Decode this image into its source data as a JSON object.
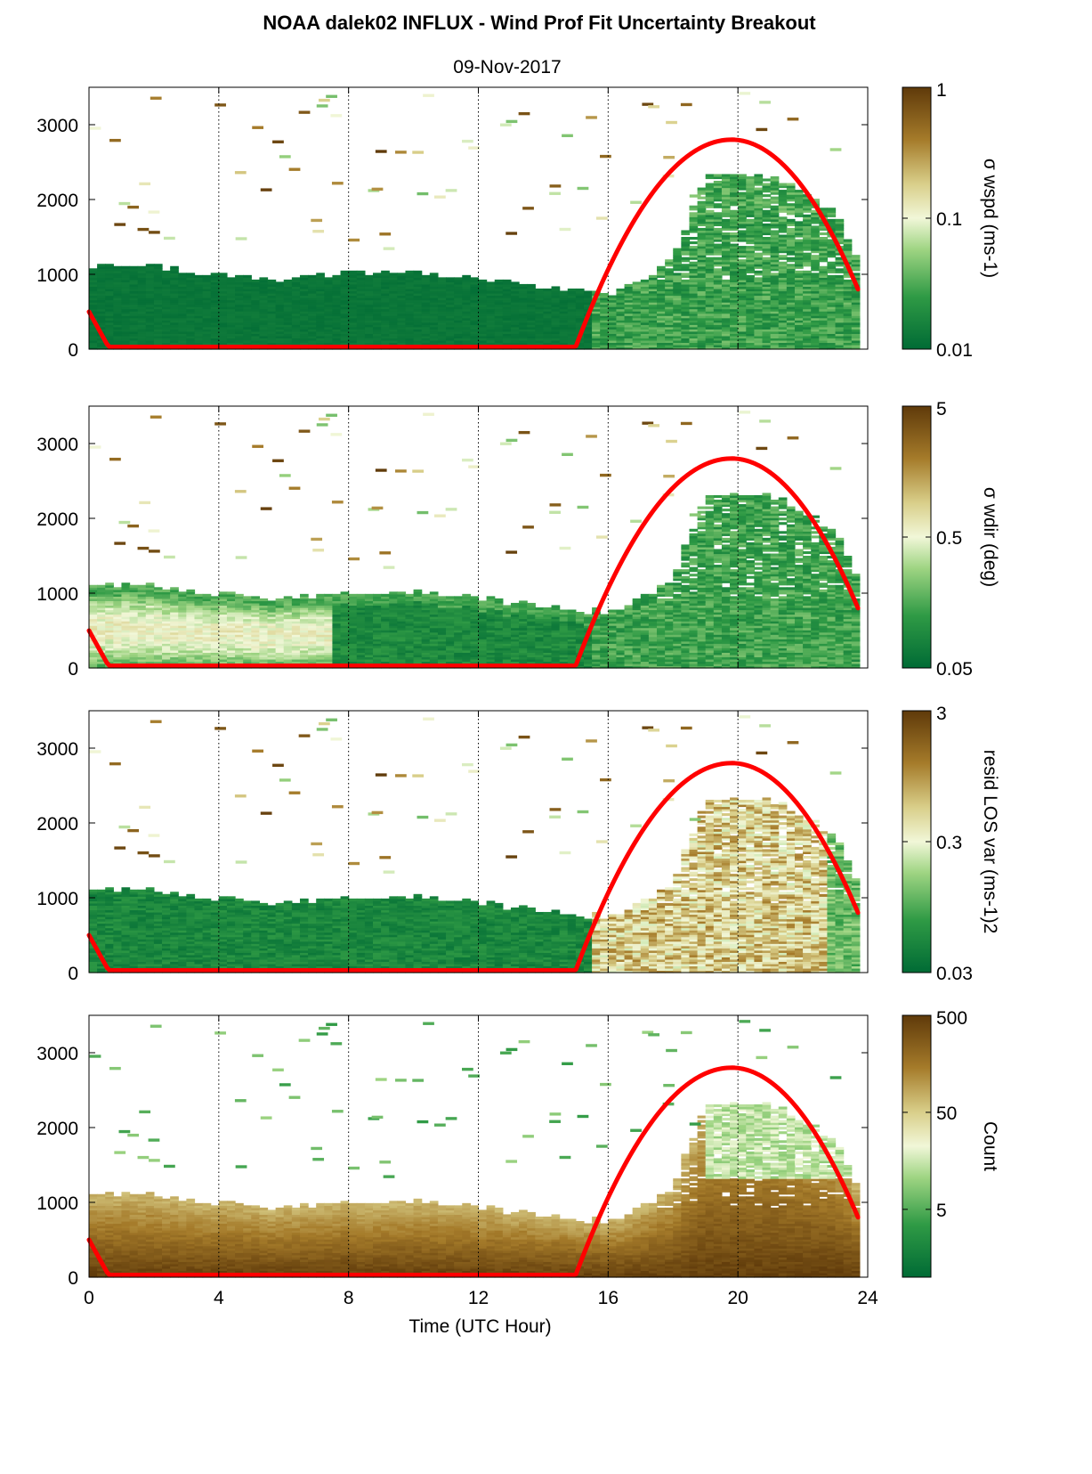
{
  "title": "NOAA dalek02 INFLUX - Wind Prof Fit Uncertainty Breakout",
  "subtitle": "09-Nov-2017",
  "colors": {
    "low": "#006b35",
    "mid": "#f1f7d8",
    "high": "#5f3a0a",
    "sun_curve": "#ff0000"
  },
  "chart_data": [
    {
      "type": "heatmap",
      "panel": 1,
      "xlim": [
        0,
        24
      ],
      "ylim": [
        0,
        3500
      ],
      "xticks": [
        "0",
        "4",
        "8",
        "12",
        "16",
        "20",
        "24"
      ],
      "yticks": [
        "0",
        "1000",
        "2000",
        "3000"
      ],
      "grid": "vertical dotted at 4,8,12,16,20",
      "colorbar": {
        "label": "σ wspd (ms-1)",
        "ticks": [
          "0.01",
          "0.1",
          "1"
        ],
        "scale": "log",
        "range": [
          0.01,
          1
        ]
      },
      "boundary_layer_top_m": {
        "x": [
          0,
          2,
          4,
          6,
          8,
          10,
          12,
          14,
          15,
          16,
          17,
          18,
          19,
          20,
          21,
          22,
          23,
          23.7
        ],
        "y": [
          1100,
          1100,
          980,
          920,
          1000,
          1000,
          920,
          800,
          780,
          720,
          900,
          1200,
          2300,
          2300,
          2300,
          2100,
          1800,
          1200
        ]
      },
      "sun_curve": {
        "x": [
          0,
          0.6,
          15,
          16,
          17,
          18,
          19,
          19.8,
          21,
          22,
          23,
          23.7
        ],
        "y": [
          500,
          30,
          30,
          900,
          1750,
          2350,
          2700,
          2800,
          2650,
          2150,
          1500,
          800
        ]
      }
    },
    {
      "type": "heatmap",
      "panel": 2,
      "xlim": [
        0,
        24
      ],
      "ylim": [
        0,
        3500
      ],
      "xticks": [
        "0",
        "4",
        "8",
        "12",
        "16",
        "20",
        "24"
      ],
      "yticks": [
        "0",
        "1000",
        "2000",
        "3000"
      ],
      "colorbar": {
        "label": "σ wdir (deg)",
        "ticks": [
          "0.05",
          "0.5",
          "5"
        ],
        "scale": "log",
        "range": [
          0.05,
          5
        ]
      },
      "boundary_layer_top_m": {
        "x": [
          0,
          2,
          4,
          6,
          8,
          10,
          12,
          14,
          15,
          16,
          17,
          18,
          19,
          20,
          21,
          22,
          23,
          23.7
        ],
        "y": [
          1100,
          1100,
          980,
          920,
          1000,
          1000,
          920,
          800,
          780,
          720,
          900,
          1200,
          2300,
          2300,
          2300,
          2100,
          1800,
          1200
        ]
      },
      "sun_curve": {
        "x": [
          0,
          0.6,
          15,
          16,
          17,
          18,
          19,
          19.8,
          21,
          22,
          23,
          23.7
        ],
        "y": [
          500,
          30,
          30,
          900,
          1750,
          2350,
          2700,
          2800,
          2650,
          2150,
          1500,
          800
        ]
      }
    },
    {
      "type": "heatmap",
      "panel": 3,
      "xlim": [
        0,
        24
      ],
      "ylim": [
        0,
        3500
      ],
      "xticks": [
        "0",
        "4",
        "8",
        "12",
        "16",
        "20",
        "24"
      ],
      "yticks": [
        "0",
        "1000",
        "2000",
        "3000"
      ],
      "colorbar": {
        "label": "resid LOS var (ms-1)2",
        "ticks": [
          "0.03",
          "0.3",
          "3"
        ],
        "scale": "log",
        "range": [
          0.03,
          3
        ]
      },
      "boundary_layer_top_m": {
        "x": [
          0,
          2,
          4,
          6,
          8,
          10,
          12,
          14,
          15,
          16,
          17,
          18,
          19,
          20,
          21,
          22,
          23,
          23.7
        ],
        "y": [
          1100,
          1100,
          980,
          920,
          1000,
          1000,
          920,
          800,
          780,
          720,
          900,
          1200,
          2300,
          2300,
          2300,
          2100,
          1800,
          1200
        ]
      },
      "sun_curve": {
        "x": [
          0,
          0.6,
          15,
          16,
          17,
          18,
          19,
          19.8,
          21,
          22,
          23,
          23.7
        ],
        "y": [
          500,
          30,
          30,
          900,
          1750,
          2350,
          2700,
          2800,
          2650,
          2150,
          1500,
          800
        ]
      }
    },
    {
      "type": "heatmap",
      "panel": 4,
      "xlim": [
        0,
        24
      ],
      "ylim": [
        0,
        3500
      ],
      "xticks": [
        "0",
        "4",
        "8",
        "12",
        "16",
        "20",
        "24"
      ],
      "yticks": [
        "0",
        "1000",
        "2000",
        "3000"
      ],
      "xlabel": "Time (UTC Hour)",
      "colorbar": {
        "label": "Count",
        "ticks": [
          "5",
          "50",
          "500"
        ],
        "scale": "log",
        "range": [
          1,
          500
        ]
      },
      "boundary_layer_top_m": {
        "x": [
          0,
          2,
          4,
          6,
          8,
          10,
          12,
          14,
          15,
          16,
          17,
          18,
          19,
          20,
          21,
          22,
          23,
          23.7
        ],
        "y": [
          1100,
          1100,
          980,
          920,
          1000,
          1000,
          920,
          800,
          780,
          720,
          900,
          1200,
          2300,
          2300,
          2300,
          2100,
          1800,
          1200
        ]
      },
      "sun_curve": {
        "x": [
          0,
          0.6,
          15,
          16,
          17,
          18,
          19,
          19.8,
          21,
          22,
          23,
          23.7
        ],
        "y": [
          500,
          30,
          30,
          900,
          1750,
          2350,
          2700,
          2800,
          2650,
          2150,
          1500,
          800
        ]
      }
    }
  ]
}
